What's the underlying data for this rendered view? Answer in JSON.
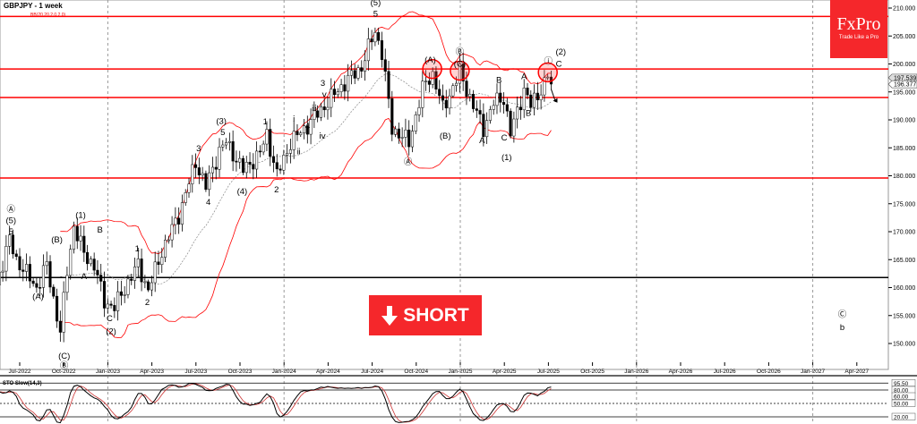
{
  "header": {
    "title": "GBPJPY - 1 week",
    "indicator": "BB(20,20,2,0,2,0)"
  },
  "logo": {
    "brand": "FxPro",
    "tagline": "Trade Like a Pro"
  },
  "signal": {
    "label": "SHORT",
    "icon": "arrow-down-icon",
    "color": "#f5272b"
  },
  "oscillator": {
    "title": "STO Slow(14,3)",
    "levels": [
      "95.50",
      "80.00",
      "60.00",
      "50.00",
      "20.00"
    ]
  },
  "chart_data": {
    "type": "candlestick",
    "symbol": "GBPJPY",
    "timeframe": "1 week",
    "ylim": [
      145,
      211
    ],
    "yticks": [
      "210.000",
      "205.000",
      "200.000",
      "195.000",
      "190.000",
      "185.000",
      "180.000",
      "175.000",
      "170.000",
      "165.000",
      "160.000",
      "155.000",
      "150.000"
    ],
    "xticks": [
      "Jul-2022",
      "Oct-2022",
      "Jan-2023",
      "Apr-2023",
      "Jul-2023",
      "Oct-2023",
      "Jan-2024",
      "Apr-2024",
      "Jul-2024",
      "Oct-2024",
      "Jan-2025",
      "Apr-2025",
      "Jul-2025",
      "Oct-2025",
      "Jan-2026",
      "Apr-2026",
      "Jul-2026",
      "Oct-2026",
      "Jan-2027",
      "Apr-2027"
    ],
    "price_tags": {
      "bid": "197.539",
      "last": "196.377"
    },
    "horizontal_levels": [
      {
        "price": 208.5,
        "color": "#ff0000"
      },
      {
        "price": 199.1,
        "color": "#ff0000"
      },
      {
        "price": 194.0,
        "color": "#ff0000"
      },
      {
        "price": 179.6,
        "color": "#ff0000"
      },
      {
        "price": 161.8,
        "color": "#000000"
      }
    ],
    "price_path": [
      [
        "2022-05-13",
        160.5
      ],
      [
        "2022-06-10",
        168.5
      ],
      [
        "2022-06-24",
        165
      ],
      [
        "2022-08-05",
        160
      ],
      [
        "2022-08-26",
        164
      ],
      [
        "2022-09-23",
        152
      ],
      [
        "2022-10-07",
        163
      ],
      [
        "2022-10-21",
        171
      ],
      [
        "2022-11-11",
        166
      ],
      [
        "2022-12-02",
        164
      ],
      [
        "2022-12-23",
        157.5
      ],
      [
        "2023-01-13",
        156.5
      ],
      [
        "2023-02-10",
        161
      ],
      [
        "2023-03-03",
        164
      ],
      [
        "2023-03-24",
        159.5
      ],
      [
        "2023-04-21",
        166.5
      ],
      [
        "2023-05-26",
        173
      ],
      [
        "2023-06-30",
        182.5
      ],
      [
        "2023-07-21",
        178
      ],
      [
        "2023-08-18",
        184.5
      ],
      [
        "2023-09-01",
        186
      ],
      [
        "2023-10-06",
        181
      ],
      [
        "2023-11-10",
        184
      ],
      [
        "2023-11-24",
        187.5
      ],
      [
        "2023-12-15",
        180
      ],
      [
        "2024-01-12",
        186
      ],
      [
        "2024-02-16",
        189
      ],
      [
        "2024-03-22",
        192.5
      ],
      [
        "2024-04-26",
        196
      ],
      [
        "2024-06-07",
        199.5
      ],
      [
        "2024-07-05",
        206
      ],
      [
        "2024-07-19",
        202
      ],
      [
        "2024-08-09",
        188.5
      ],
      [
        "2024-09-13",
        186
      ],
      [
        "2024-10-11",
        195.5
      ],
      [
        "2024-10-31",
        198.5
      ],
      [
        "2024-11-22",
        192
      ],
      [
        "2024-12-27",
        198.5
      ],
      [
        "2025-01-24",
        192.5
      ],
      [
        "2025-02-14",
        188.5
      ],
      [
        "2025-03-07",
        193
      ],
      [
        "2025-03-28",
        194
      ],
      [
        "2025-04-11",
        187.5
      ],
      [
        "2025-05-09",
        195.5
      ],
      [
        "2025-05-23",
        192.5
      ],
      [
        "2025-06-20",
        196.5
      ],
      [
        "2025-06-27",
        198
      ],
      [
        "2025-07-04",
        196.4
      ]
    ],
    "resistance_circles": [
      [
        "2024-10-31",
        199.1
      ],
      [
        "2024-12-27",
        198.8
      ],
      [
        "2025-06-27",
        198.5
      ]
    ],
    "wave_labels": [
      {
        "text": "Ⓐ",
        "date": "2022-06-13",
        "price": 174
      },
      {
        "text": "(5)",
        "date": "2022-06-13",
        "price": 172
      },
      {
        "text": "5",
        "date": "2022-06-13",
        "price": 170
      },
      {
        "text": "(A)",
        "date": "2022-08-08",
        "price": 158.4
      },
      {
        "text": "(B)",
        "date": "2022-09-16",
        "price": 168.6
      },
      {
        "text": "A",
        "date": "2022-11-11",
        "price": 162
      },
      {
        "text": "(1)",
        "date": "2022-11-04",
        "price": 173
      },
      {
        "text": "B",
        "date": "2022-12-14",
        "price": 170.3
      },
      {
        "text": "(C)",
        "date": "2022-10-01",
        "price": 147.8
      },
      {
        "text": "Ⓑ",
        "date": "2022-10-01",
        "price": 146
      },
      {
        "text": "C",
        "date": "2023-01-03",
        "price": 154.5
      },
      {
        "text": "(2)",
        "date": "2023-01-06",
        "price": 152.2
      },
      {
        "text": "1",
        "date": "2023-03-01",
        "price": 167
      },
      {
        "text": "2",
        "date": "2023-03-22",
        "price": 157.4
      },
      {
        "text": "3",
        "date": "2023-07-06",
        "price": 184.9
      },
      {
        "text": "4",
        "date": "2023-07-26",
        "price": 175.3
      },
      {
        "text": "(3)",
        "date": "2023-08-22",
        "price": 189.8
      },
      {
        "text": "5",
        "date": "2023-08-25",
        "price": 187.8
      },
      {
        "text": "(4)",
        "date": "2023-10-04",
        "price": 177.2
      },
      {
        "text": "1",
        "date": "2023-11-21",
        "price": 189.7
      },
      {
        "text": "2",
        "date": "2023-12-14",
        "price": 177.5
      },
      {
        "text": "ⅰ",
        "date": "2024-01-19",
        "price": 190.2
      },
      {
        "text": "ⅱ",
        "date": "2024-01-29",
        "price": 184.3
      },
      {
        "text": "ⅲ",
        "date": "2024-03-01",
        "price": 192.1
      },
      {
        "text": "ⅳ",
        "date": "2024-03-18",
        "price": 187.1
      },
      {
        "text": "ⅴ",
        "date": "2024-03-22",
        "price": 194.6
      },
      {
        "text": "4",
        "date": "2024-02-16",
        "price": 188.9
      },
      {
        "text": "3",
        "date": "2024-03-19",
        "price": 196.6
      },
      {
        "text": "(5)",
        "date": "2024-07-06",
        "price": 211
      },
      {
        "text": "5",
        "date": "2024-07-06",
        "price": 209
      },
      {
        "text": "Ⓐ",
        "date": "2024-09-11",
        "price": 182.5
      },
      {
        "text": "(A)",
        "date": "2024-10-27",
        "price": 200.7
      },
      {
        "text": "(B)",
        "date": "2024-11-27",
        "price": 187.1
      },
      {
        "text": "Ⓑ",
        "date": "2024-12-27",
        "price": 202.2
      },
      {
        "text": "(C)",
        "date": "2024-12-27",
        "price": 200
      },
      {
        "text": "A",
        "date": "2025-02-11",
        "price": 186.3
      },
      {
        "text": "B",
        "date": "2025-03-18",
        "price": 197.1
      },
      {
        "text": "C",
        "date": "2025-03-29",
        "price": 186.8
      },
      {
        "text": "(1)",
        "date": "2025-04-03",
        "price": 183.3
      },
      {
        "text": "A",
        "date": "2025-05-09",
        "price": 197.8
      },
      {
        "text": "B",
        "date": "2025-05-18",
        "price": 191.2
      },
      {
        "text": "ⓘ",
        "date": "2025-06-28",
        "price": 200.5
      },
      {
        "text": "(2)",
        "date": "2025-07-24",
        "price": 202.2
      },
      {
        "text": "C",
        "date": "2025-07-20",
        "price": 200
      },
      {
        "text": "Ⓒ",
        "date": "2027-02-26",
        "price": 155.2
      },
      {
        "text": "b",
        "date": "2027-02-26",
        "price": 152.9
      }
    ],
    "bollinger": {
      "period": 20,
      "deviations": 2,
      "band_color": "#ff0000",
      "mid_color": "#888888"
    },
    "stochastic": {
      "k": 14,
      "d": 3,
      "k_color": "#000000",
      "d_color": "#cc3333",
      "ylim": [
        0,
        100
      ]
    }
  }
}
